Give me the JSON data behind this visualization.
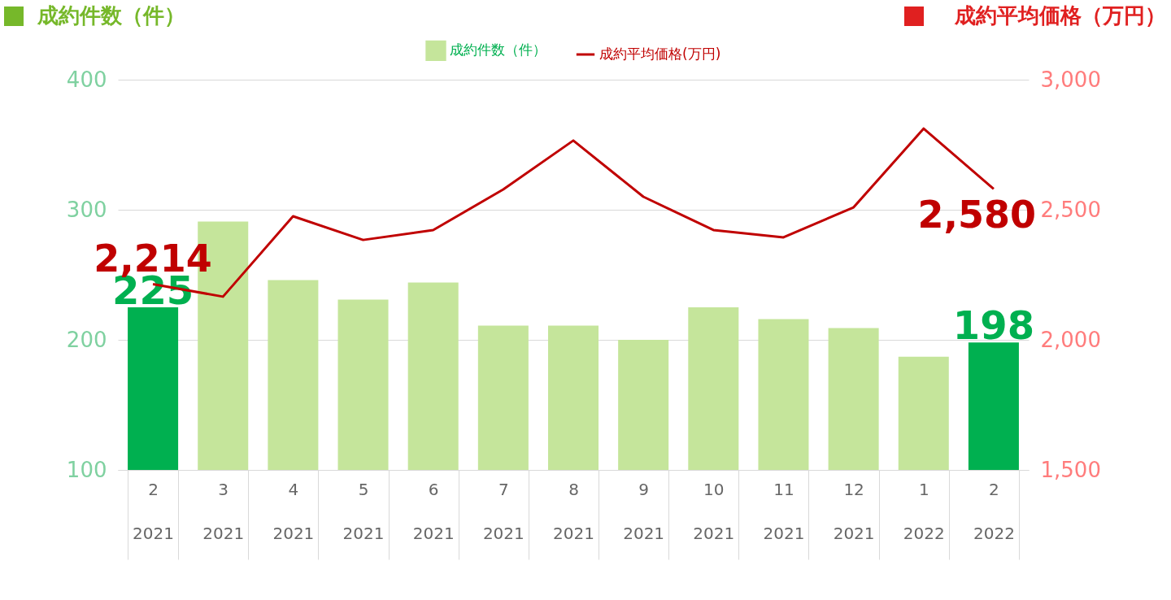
{
  "chart_data": {
    "type": "bar",
    "ylabel": "成約件数（件）",
    "y2label": "成約平均価格（万円）",
    "categories": [
      "2\n2021",
      "3\n2021",
      "4\n2021",
      "5\n2021",
      "6\n2021",
      "7\n2021",
      "8\n2021",
      "9\n2021",
      "10\n2021",
      "11\n2021",
      "12\n2021",
      "1\n2022",
      "2\n2022"
    ],
    "series": [
      {
        "name": "成約件数（件）",
        "color": "#c5e59b",
        "colors": [
          "#00b050",
          "#c5e59b",
          "#c5e59b",
          "#c5e59b",
          "#c5e59b",
          "#c5e59b",
          "#c5e59b",
          "#c5e59b",
          "#c5e59b",
          "#c5e59b",
          "#c5e59b",
          "#c5e59b",
          "#00b050"
        ],
        "values": [
          225,
          291,
          246,
          231,
          244,
          211,
          211,
          200,
          225,
          216,
          209,
          187,
          198
        ],
        "value_labels": [
          "225",
          null,
          null,
          null,
          null,
          null,
          null,
          null,
          null,
          null,
          null,
          null,
          "198"
        ]
      },
      {
        "name": "成約平均価格(万円)",
        "type": "line",
        "axis": "y2",
        "color": "#c00000",
        "values": [
          2214,
          2166,
          2475,
          2384,
          2422,
          2578,
          2766,
          2550,
          2422,
          2394,
          2509,
          2812,
          2580
        ],
        "value_labels": [
          "2,214",
          null,
          null,
          null,
          null,
          null,
          null,
          null,
          null,
          null,
          null,
          null,
          "2,580"
        ]
      }
    ],
    "ylim": [
      100,
      400
    ],
    "yticks": [
      100,
      200,
      300,
      400
    ],
    "y2lim": [
      1500,
      3000
    ],
    "y2ticks": [
      {
        "value": 1500,
        "label": "1,500"
      },
      {
        "value": 2000,
        "label": "2,000"
      },
      {
        "value": 2500,
        "label": "2,500"
      },
      {
        "value": 3000,
        "label": "3,000"
      }
    ],
    "grid": "y",
    "legend": "top"
  }
}
